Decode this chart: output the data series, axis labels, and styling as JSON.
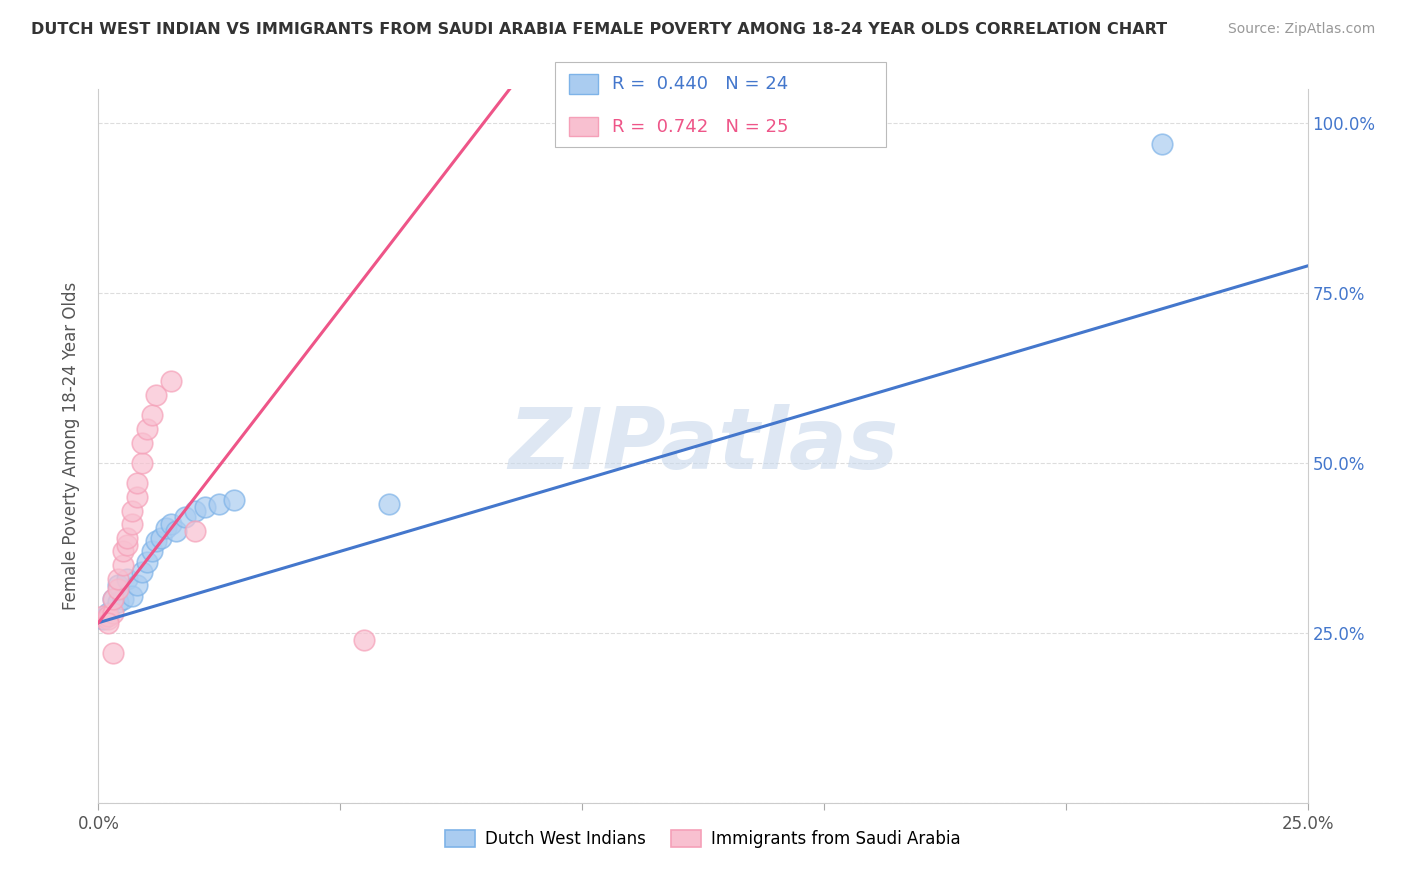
{
  "title": "DUTCH WEST INDIAN VS IMMIGRANTS FROM SAUDI ARABIA FEMALE POVERTY AMONG 18-24 YEAR OLDS CORRELATION CHART",
  "source": "Source: ZipAtlas.com",
  "ylabel": "Female Poverty Among 18-24 Year Olds",
  "xlim": [
    0.0,
    0.25
  ],
  "ylim": [
    0.0,
    1.05
  ],
  "xticks": [
    0.0,
    0.05,
    0.1,
    0.15,
    0.2,
    0.25
  ],
  "yticks": [
    0.0,
    0.25,
    0.5,
    0.75,
    1.0
  ],
  "xticklabels": [
    "0.0%",
    "",
    "",
    "",
    "",
    "25.0%"
  ],
  "yticklabels": [
    "",
    "25.0%",
    "50.0%",
    "75.0%",
    "100.0%"
  ],
  "blue_R": 0.44,
  "blue_N": 24,
  "pink_R": 0.742,
  "pink_N": 25,
  "blue_scatter": [
    [
      0.001,
      0.27
    ],
    [
      0.002,
      0.28
    ],
    [
      0.003,
      0.3
    ],
    [
      0.004,
      0.295
    ],
    [
      0.004,
      0.32
    ],
    [
      0.005,
      0.3
    ],
    [
      0.006,
      0.33
    ],
    [
      0.007,
      0.305
    ],
    [
      0.008,
      0.32
    ],
    [
      0.009,
      0.34
    ],
    [
      0.01,
      0.355
    ],
    [
      0.011,
      0.37
    ],
    [
      0.012,
      0.385
    ],
    [
      0.013,
      0.39
    ],
    [
      0.014,
      0.405
    ],
    [
      0.015,
      0.41
    ],
    [
      0.016,
      0.4
    ],
    [
      0.018,
      0.42
    ],
    [
      0.02,
      0.43
    ],
    [
      0.022,
      0.435
    ],
    [
      0.025,
      0.44
    ],
    [
      0.028,
      0.445
    ],
    [
      0.06,
      0.44
    ],
    [
      0.22,
      0.97
    ]
  ],
  "pink_scatter": [
    [
      0.001,
      0.275
    ],
    [
      0.002,
      0.27
    ],
    [
      0.002,
      0.275
    ],
    [
      0.003,
      0.28
    ],
    [
      0.003,
      0.3
    ],
    [
      0.004,
      0.315
    ],
    [
      0.004,
      0.33
    ],
    [
      0.005,
      0.35
    ],
    [
      0.005,
      0.37
    ],
    [
      0.006,
      0.38
    ],
    [
      0.006,
      0.39
    ],
    [
      0.007,
      0.41
    ],
    [
      0.007,
      0.43
    ],
    [
      0.008,
      0.45
    ],
    [
      0.008,
      0.47
    ],
    [
      0.009,
      0.5
    ],
    [
      0.009,
      0.53
    ],
    [
      0.01,
      0.55
    ],
    [
      0.011,
      0.57
    ],
    [
      0.012,
      0.6
    ],
    [
      0.015,
      0.62
    ],
    [
      0.02,
      0.4
    ],
    [
      0.055,
      0.24
    ],
    [
      0.003,
      0.22
    ],
    [
      0.002,
      0.265
    ]
  ],
  "blue_color": "#7EB3E8",
  "pink_color": "#F5A0B8",
  "blue_line_color": "#4477CC",
  "pink_line_color": "#EE5588",
  "blue_fill_color": "#AACCF0",
  "pink_fill_color": "#F8C0D0",
  "watermark_color": "#C8D8EC",
  "background_color": "#FFFFFF",
  "grid_color": "#DDDDDD",
  "blue_line_endpoints": [
    [
      0.0,
      0.265
    ],
    [
      0.25,
      0.79
    ]
  ],
  "pink_line_endpoints": [
    [
      0.0,
      0.265
    ],
    [
      0.085,
      1.05
    ]
  ]
}
